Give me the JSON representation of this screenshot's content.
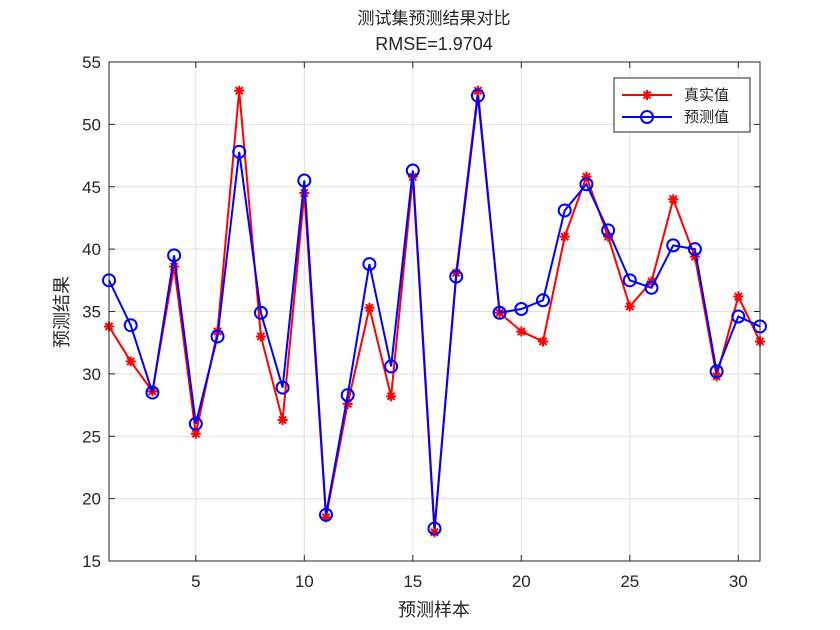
{
  "chart_data": {
    "type": "line",
    "title": "测试集预测结果对比",
    "subtitle": "RMSE=1.9704",
    "xlabel": "预测样本",
    "ylabel": "预测结果",
    "xlim": [
      1,
      31
    ],
    "ylim": [
      15,
      55
    ],
    "xticks": [
      5,
      10,
      15,
      20,
      25,
      30
    ],
    "yticks": [
      15,
      20,
      25,
      30,
      35,
      40,
      45,
      50,
      55
    ],
    "grid": true,
    "legend_position": "top-right",
    "x": [
      1,
      2,
      3,
      4,
      5,
      6,
      7,
      8,
      9,
      10,
      11,
      12,
      13,
      14,
      15,
      16,
      17,
      18,
      19,
      20,
      21,
      22,
      23,
      24,
      25,
      26,
      27,
      28,
      29,
      30,
      31
    ],
    "series": [
      {
        "name": "真实值",
        "color": "#ff0000",
        "marker": "asterisk",
        "values": [
          33.8,
          31.0,
          28.6,
          38.6,
          25.2,
          33.4,
          52.7,
          33.0,
          26.3,
          44.5,
          18.5,
          27.6,
          35.3,
          28.2,
          45.8,
          17.3,
          38.1,
          52.7,
          34.9,
          33.4,
          32.6,
          41.0,
          45.8,
          41.0,
          35.4,
          37.4,
          44.0,
          39.4,
          29.8,
          36.2,
          32.6
        ]
      },
      {
        "name": "预测值",
        "color": "#0000ff",
        "marker": "circle",
        "values": [
          37.5,
          33.9,
          28.5,
          39.5,
          26.0,
          33.0,
          47.8,
          34.9,
          28.9,
          45.5,
          18.7,
          28.3,
          38.8,
          30.6,
          46.3,
          17.6,
          37.8,
          52.3,
          34.9,
          35.2,
          35.9,
          43.1,
          45.2,
          41.5,
          37.5,
          36.9,
          40.3,
          40.0,
          30.2,
          34.6,
          33.8
        ]
      }
    ]
  }
}
